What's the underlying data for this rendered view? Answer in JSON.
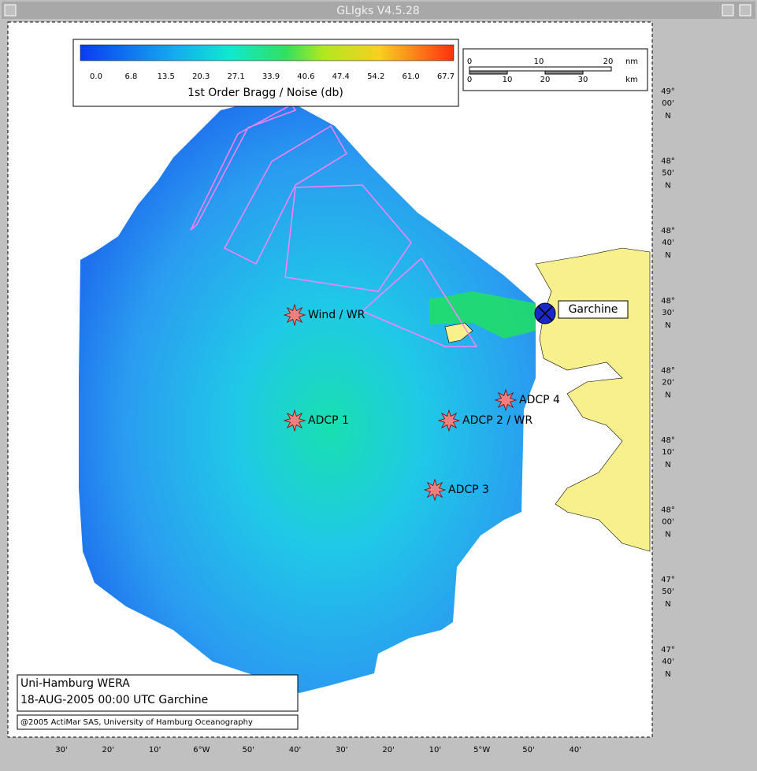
{
  "window": {
    "title": "GLIgks V4.5.28"
  },
  "colorbar": {
    "ticks": [
      "0.0",
      "6.8",
      "13.5",
      "20.3",
      "27.1",
      "33.9",
      "40.6",
      "47.4",
      "54.2",
      "61.0",
      "67.7"
    ],
    "label": "1st Order Bragg / Noise (db)"
  },
  "scale_bar": {
    "nm_ticks": [
      "0",
      "10",
      "20"
    ],
    "nm_unit": "nm",
    "km_ticks": [
      "0",
      "10",
      "20",
      "30"
    ],
    "km_unit": "km"
  },
  "lat_labels": [
    {
      "deg": "49°",
      "min": "00'",
      "hem": "N"
    },
    {
      "deg": "48°",
      "min": "50'",
      "hem": "N"
    },
    {
      "deg": "48°",
      "min": "40'",
      "hem": "N"
    },
    {
      "deg": "48°",
      "min": "30'",
      "hem": "N"
    },
    {
      "deg": "48°",
      "min": "20'",
      "hem": "N"
    },
    {
      "deg": "48°",
      "min": "10'",
      "hem": "N"
    },
    {
      "deg": "48°",
      "min": "00'",
      "hem": "N"
    },
    {
      "deg": "47°",
      "min": "50'",
      "hem": "N"
    },
    {
      "deg": "47°",
      "min": "40'",
      "hem": "N"
    }
  ],
  "lon_labels": [
    "30'",
    "20'",
    "10'",
    "6°W",
    "50'",
    "40'",
    "30'",
    "20'",
    "10'",
    "5°W",
    "50'",
    "40'"
  ],
  "stations": [
    {
      "label": "Wind / WR"
    },
    {
      "label": "ADCP 1"
    },
    {
      "label": "ADCP 2 / WR"
    },
    {
      "label": "ADCP 3"
    },
    {
      "label": "ADCP 4"
    }
  ],
  "site": {
    "label": "Garchine"
  },
  "info": {
    "line1": "Uni-Hamburg WERA",
    "line2": "18-AUG-2005 00:00 UTC  Garchine",
    "copyright": "@2005 ActiMar SAS, University of Hamburg Oceanography"
  }
}
